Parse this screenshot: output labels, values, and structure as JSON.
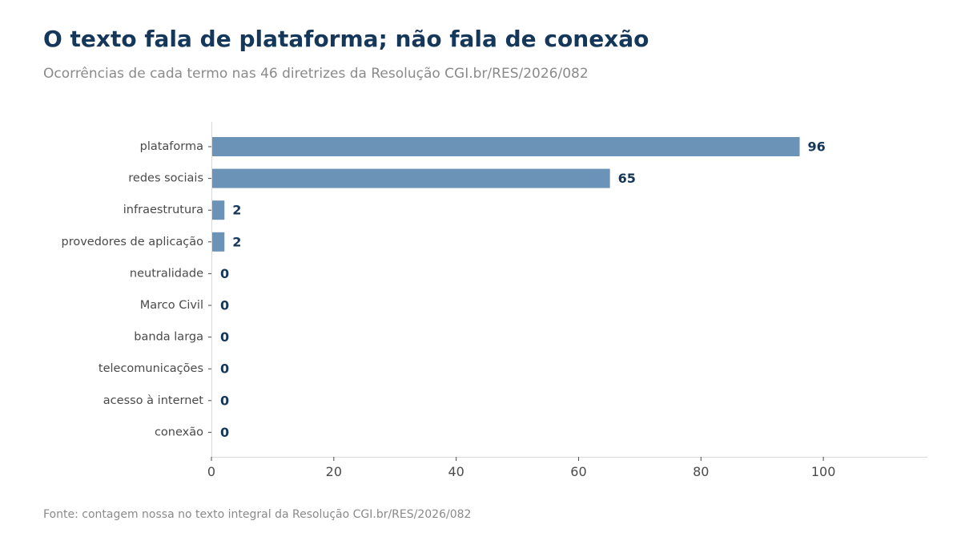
{
  "title": "O texto fala de plataforma; não fala de conexão",
  "subtitle": "Ocorrências de cada termo nas 46 diretrizes da Resolução CGI.br/RES/2026/082",
  "source": "Fonte: contagem nossa no texto integral da Resolução CGI.br/RES/2026/082",
  "chart_data": {
    "type": "bar",
    "orientation": "horizontal",
    "categories": [
      "plataforma",
      "redes sociais",
      "infraestrutura",
      "provedores de aplicação",
      "neutralidade",
      "Marco Civil",
      "banda larga",
      "telecomunicações",
      "acesso à internet",
      "conexão"
    ],
    "values": [
      96,
      65,
      2,
      2,
      0,
      0,
      0,
      0,
      0,
      0
    ],
    "xlim": [
      0,
      117
    ],
    "xticks": [
      0,
      20,
      40,
      60,
      80,
      100
    ],
    "grid": false,
    "bar_color": "#6b93b8",
    "label_color": "#14375a"
  }
}
